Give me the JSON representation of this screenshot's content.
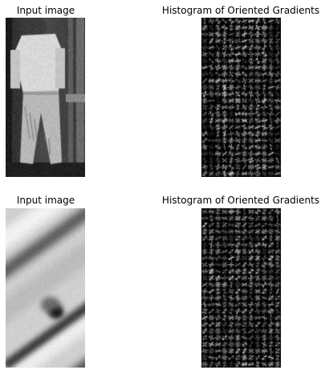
{
  "panels": [
    {
      "title": "Input image"
    },
    {
      "title": "Histogram of Oriented Gradients"
    },
    {
      "title": "Input image"
    },
    {
      "title": "Histogram of Oriented Gradients"
    }
  ],
  "colors": {
    "background": "#ffffff",
    "hog_background": "#000000"
  }
}
